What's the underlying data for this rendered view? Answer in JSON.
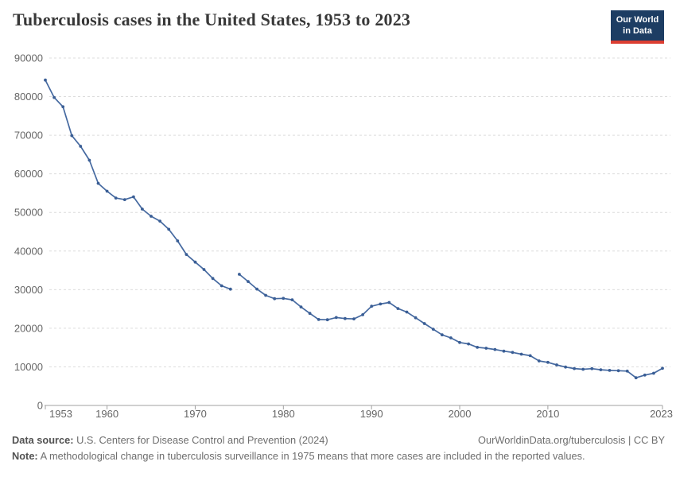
{
  "header": {
    "title": "Tuberculosis cases in the United States, 1953 to 2023",
    "logo": {
      "line1": "Our World",
      "line2": "in Data",
      "background_color": "#1d3d63",
      "accent_color": "#dc3e32"
    }
  },
  "footer": {
    "source_label": "Data source:",
    "source_text": "U.S. Centers for Disease Control and Prevention (2024)",
    "right_text": "OurWorldinData.org/tuberculosis | CC BY",
    "note_label": "Note:",
    "note_text": "A methodological change in tuberculosis surveillance in 1975 means that more cases are included in the reported values."
  },
  "chart_data": {
    "type": "line",
    "title": "Tuberculosis cases in the United States, 1953 to 2023",
    "xlabel": "",
    "ylabel": "",
    "xlim": [
      1953,
      2023
    ],
    "ylim": [
      0,
      90000
    ],
    "grid": "horizontal-dashed",
    "legend_position": "none",
    "x_ticks": [
      1953,
      1960,
      1970,
      1980,
      1990,
      2000,
      2010,
      2023
    ],
    "y_ticks": [
      0,
      10000,
      20000,
      30000,
      40000,
      50000,
      60000,
      70000,
      80000,
      90000
    ],
    "line_break_after": 1974,
    "x": [
      1953,
      1954,
      1955,
      1956,
      1957,
      1958,
      1959,
      1960,
      1961,
      1962,
      1963,
      1964,
      1965,
      1966,
      1967,
      1968,
      1969,
      1970,
      1971,
      1972,
      1973,
      1974,
      1975,
      1976,
      1977,
      1978,
      1979,
      1980,
      1981,
      1982,
      1983,
      1984,
      1985,
      1986,
      1987,
      1988,
      1989,
      1990,
      1991,
      1992,
      1993,
      1994,
      1995,
      1996,
      1997,
      1998,
      1999,
      2000,
      2001,
      2002,
      2003,
      2004,
      2005,
      2006,
      2007,
      2008,
      2009,
      2010,
      2011,
      2012,
      2013,
      2014,
      2015,
      2016,
      2017,
      2018,
      2019,
      2020,
      2021,
      2022,
      2023
    ],
    "series": [
      {
        "name": "Tuberculosis cases",
        "color": "#4569A0",
        "marker_color": "#3A5E95",
        "values": [
          84304,
          79775,
          77368,
          69895,
          67149,
          63534,
          57535,
          55494,
          53726,
          53315,
          54042,
          50874,
          49016,
          47767,
          45647,
          42623,
          39120,
          37137,
          35217,
          32882,
          30998,
          30122,
          33989,
          32105,
          30145,
          28521,
          27669,
          27749,
          27373,
          25520,
          23846,
          22255,
          22201,
          22768,
          22517,
          22436,
          23495,
          25701,
          26283,
          26673,
          25102,
          24206,
          22726,
          21210,
          19751,
          18286,
          17499,
          16308,
          15945,
          15055,
          14835,
          14499,
          14065,
          13728,
          13283,
          12895,
          11523,
          11159,
          10509,
          9941,
          9556,
          9379,
          9538,
          9242,
          9088,
          8996,
          8895,
          7171,
          7866,
          8331,
          9615
        ]
      }
    ],
    "axis_color": "#a0a0a0",
    "gridline_color": "#dcdcdc",
    "tick_label_color": "#666666"
  }
}
